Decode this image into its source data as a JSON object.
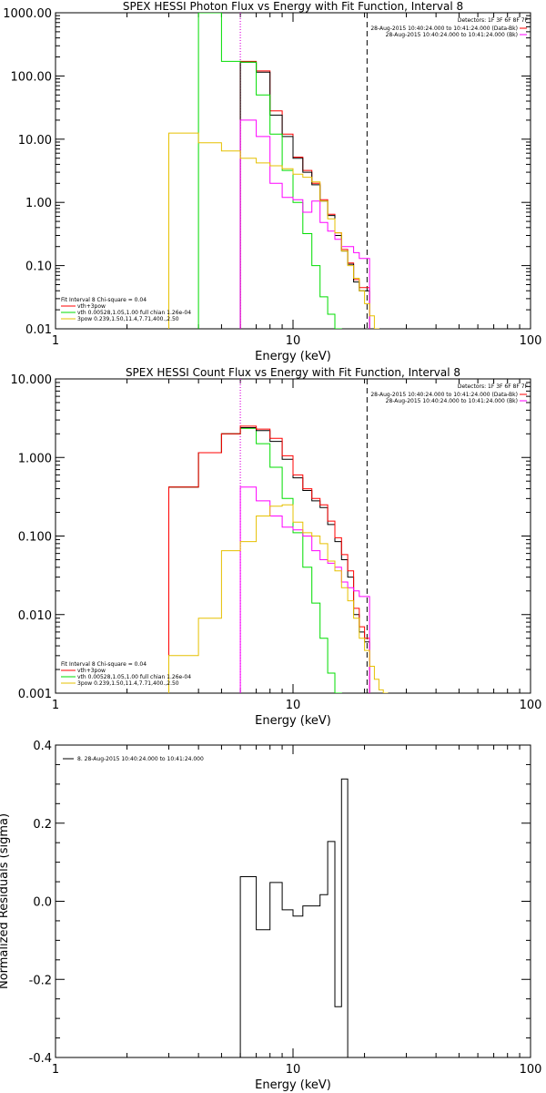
{
  "chart_data": [
    {
      "type": "line",
      "title": "SPEX HESSI Photon Flux vs Energy with Fit Function, Interval 8",
      "xlabel": "Energy (keV)",
      "ylabel": "",
      "xscale": "log",
      "yscale": "log",
      "xlim": [
        1,
        100
      ],
      "ylim": [
        0.01,
        1000
      ],
      "xticks": [
        {
          "v": 1,
          "label": "1"
        },
        {
          "v": 10,
          "label": "10"
        },
        {
          "v": 100,
          "label": "100"
        }
      ],
      "yticks": [
        {
          "v": 0.01,
          "label": "0.01"
        },
        {
          "v": 0.1,
          "label": "0.10"
        },
        {
          "v": 1,
          "label": "1.00"
        },
        {
          "v": 10,
          "label": "10.00"
        },
        {
          "v": 100,
          "label": "100.00"
        },
        {
          "v": 1000,
          "label": "1000.00"
        }
      ],
      "vlines": [
        {
          "x": 6.0,
          "style": "dotted",
          "color": "#000000"
        },
        {
          "x": 6.0,
          "style": "dotted",
          "color": "#ff00ff"
        },
        {
          "x": 20.5,
          "style": "dashed",
          "color": "#000000"
        }
      ],
      "detectors_label": "Detectors: 1F 3F 6F 8F 7F",
      "legend_top_right": [
        {
          "text": "28-Aug-2015 10:40:24.000 to 10:41:24.000 (Data-Bk)",
          "color": "#ff0000"
        },
        {
          "text": "28-Aug-2015 10:40:24.000 to 10:41:24.000 (Bk)",
          "color": "#ff00ff"
        }
      ],
      "legend_bottom_left": [
        {
          "text": "Fit Interval 8   Chi-square = 0.04",
          "color": ""
        },
        {
          "text": "vth+3pow",
          "color": "#ff0000"
        },
        {
          "text": "vth 0.00528,1.05,1.00  full chian 1.26e-04",
          "color": "#00dd00"
        },
        {
          "text": "3pow 0.239,1.50,11.4,7.71,400.,2.50",
          "color": "#e6c000"
        }
      ],
      "series": [
        {
          "color": "#ff0000",
          "x": [
            6.0,
            7.0,
            8.0,
            9.0,
            10.0,
            11.0,
            12.0,
            13.0,
            14.0,
            15.0,
            16.0,
            17.0,
            18.0,
            19.0,
            20.0
          ],
          "values": [
            170,
            120,
            28,
            12,
            5.2,
            3.2,
            2.0,
            1.1,
            0.65,
            0.33,
            0.18,
            0.11,
            0.06,
            0.045,
            0.045
          ]
        },
        {
          "color": "#000000",
          "x": [
            6.0,
            7.0,
            8.0,
            9.0,
            10.0,
            11.0,
            12.0,
            13.0,
            14.0,
            15.0,
            16.0,
            17.0,
            18.0,
            19.0,
            20.0
          ],
          "values": [
            165,
            115,
            24,
            11,
            5.0,
            3.0,
            1.9,
            1.05,
            0.62,
            0.3,
            0.17,
            0.105,
            0.055,
            0.04,
            0.04
          ]
        },
        {
          "color": "#00dd00",
          "x": [
            4.0,
            5.0,
            6.0,
            7.0,
            8.0,
            9.0,
            10.0,
            11.0,
            12.0,
            13.0,
            14.0,
            15.0
          ],
          "values": [
            1000,
            170,
            165,
            50,
            12,
            3.2,
            1.0,
            0.32,
            0.1,
            0.032,
            0.017,
            0.01
          ]
        },
        {
          "color": "#ff00ff",
          "x": [
            6.0,
            7.0,
            8.0,
            9.0,
            10.0,
            11.0,
            12.0,
            13.0,
            14.0,
            15.0,
            16.0,
            17.0,
            18.0,
            19.0,
            20.0
          ],
          "values": [
            20,
            11,
            2.0,
            1.2,
            1.1,
            0.7,
            1.05,
            0.48,
            0.35,
            0.26,
            0.2,
            0.2,
            0.16,
            0.13,
            0.13
          ]
        },
        {
          "color": "#e6c000",
          "x": [
            3.0,
            4.0,
            5.0,
            6.0,
            7.0,
            8.0,
            9.0,
            10.0,
            11.0,
            12.0,
            13.0,
            14.0,
            15.0,
            16.0,
            17.0,
            18.0,
            19.0,
            20.0,
            21.0,
            22.0
          ],
          "values": [
            12.5,
            8.8,
            6.5,
            5.0,
            4.2,
            3.8,
            3.4,
            2.8,
            2.5,
            2.1,
            1.05,
            0.55,
            0.33,
            0.17,
            0.1,
            0.063,
            0.04,
            0.025,
            0.016,
            0.01
          ]
        }
      ]
    },
    {
      "type": "line",
      "title": "SPEX HESSI Count Flux vs Energy with Fit Function, Interval 8",
      "xlabel": "Energy (keV)",
      "ylabel": "",
      "xscale": "log",
      "yscale": "log",
      "xlim": [
        1,
        100
      ],
      "ylim": [
        0.001,
        10
      ],
      "xticks": [
        {
          "v": 1,
          "label": "1"
        },
        {
          "v": 10,
          "label": "10"
        },
        {
          "v": 100,
          "label": "100"
        }
      ],
      "yticks": [
        {
          "v": 0.001,
          "label": "0.001"
        },
        {
          "v": 0.01,
          "label": "0.010"
        },
        {
          "v": 0.1,
          "label": "0.100"
        },
        {
          "v": 1,
          "label": "1.000"
        },
        {
          "v": 10,
          "label": "10.000"
        }
      ],
      "vlines": [
        {
          "x": 6.0,
          "style": "dotted",
          "color": "#000000"
        },
        {
          "x": 6.0,
          "style": "dotted",
          "color": "#ff00ff"
        },
        {
          "x": 20.5,
          "style": "dashed",
          "color": "#000000"
        }
      ],
      "detectors_label": "Detectors: 1F 3F 6F 8F 7F",
      "legend_top_right": [
        {
          "text": "28-Aug-2015 10:40:24.000 to 10:41:24.000 (Data-Bk)",
          "color": "#ff0000"
        },
        {
          "text": "28-Aug-2015 10:40:24.000 to 10:41:24.000 (Bk)",
          "color": "#ff00ff"
        }
      ],
      "legend_bottom_left": [
        {
          "text": "Fit Interval 8   Chi-square = 0.04",
          "color": ""
        },
        {
          "text": "vth+3pow",
          "color": "#ff0000"
        },
        {
          "text": "vth 0.00528,1.05,1.00  full chian 1.26e-04",
          "color": "#00dd00"
        },
        {
          "text": "3pow 0.239,1.50,11.4,7.71,400.,2.50",
          "color": "#e6c000"
        }
      ],
      "series": [
        {
          "color": "#00dd00",
          "x": [
            3.0,
            4.0,
            5.0,
            6.0,
            7.0,
            8.0,
            9.0,
            10.0,
            11.0,
            12.0,
            13.0,
            14.0,
            15.0
          ],
          "values": [
            0.42,
            1.15,
            2.0,
            2.35,
            1.5,
            0.75,
            0.3,
            0.11,
            0.04,
            0.014,
            0.005,
            0.0018,
            0.001
          ]
        },
        {
          "color": "#000000",
          "x": [
            3.0,
            4.0,
            5.0,
            6.0,
            7.0,
            8.0,
            9.0,
            10.0,
            11.0,
            12.0,
            13.0,
            14.0,
            15.0,
            16.0,
            17.0,
            18.0,
            19.0,
            20.0
          ],
          "values": [
            0.42,
            1.15,
            2.0,
            2.4,
            2.2,
            1.6,
            0.95,
            0.55,
            0.38,
            0.28,
            0.23,
            0.14,
            0.085,
            0.05,
            0.03,
            0.01,
            0.006,
            0.0045
          ]
        },
        {
          "color": "#ff0000",
          "x": [
            3.0,
            4.0,
            5.0,
            6.0,
            7.0,
            8.0,
            9.0,
            10.0,
            11.0,
            12.0,
            13.0,
            14.0,
            15.0,
            16.0,
            17.0,
            18.0,
            19.0,
            20.0
          ],
          "values": [
            0.42,
            1.15,
            2.0,
            2.5,
            2.3,
            1.75,
            1.05,
            0.6,
            0.4,
            0.3,
            0.25,
            0.155,
            0.095,
            0.058,
            0.036,
            0.012,
            0.007,
            0.005
          ]
        },
        {
          "color": "#ff00ff",
          "x": [
            6.0,
            7.0,
            8.0,
            9.0,
            10.0,
            11.0,
            12.0,
            13.0,
            14.0,
            15.0,
            16.0,
            17.0,
            18.0,
            19.0,
            20.0
          ],
          "values": [
            0.42,
            0.28,
            0.18,
            0.13,
            0.12,
            0.1,
            0.065,
            0.05,
            0.045,
            0.04,
            0.026,
            0.022,
            0.02,
            0.017,
            0.017
          ]
        },
        {
          "color": "#e6c000",
          "x": [
            3.0,
            4.0,
            5.0,
            6.0,
            7.0,
            8.0,
            9.0,
            10.0,
            11.0,
            12.0,
            13.0,
            14.0,
            15.0,
            16.0,
            17.0,
            18.0,
            19.0,
            20.0,
            21.0,
            22.0,
            23.0,
            24.0
          ],
          "values": [
            0.003,
            0.009,
            0.065,
            0.085,
            0.18,
            0.24,
            0.25,
            0.15,
            0.11,
            0.1,
            0.08,
            0.048,
            0.036,
            0.022,
            0.015,
            0.009,
            0.005,
            0.0035,
            0.0022,
            0.0015,
            0.0011,
            0.001
          ]
        }
      ]
    },
    {
      "type": "line",
      "title": "",
      "xlabel": "Energy (keV)",
      "ylabel": "Normalized Residuals (sigma)",
      "xscale": "log",
      "yscale": "linear",
      "xlim": [
        1,
        100
      ],
      "ylim": [
        -0.4,
        0.4
      ],
      "xticks": [
        {
          "v": 1,
          "label": "1"
        },
        {
          "v": 10,
          "label": "10"
        },
        {
          "v": 100,
          "label": "100"
        }
      ],
      "yticks": [
        {
          "v": -0.4,
          "label": "-0.4"
        },
        {
          "v": -0.2,
          "label": "-0.2"
        },
        {
          "v": 0.0,
          "label": "0.0"
        },
        {
          "v": 0.2,
          "label": "0.2"
        },
        {
          "v": 0.4,
          "label": "0.4"
        }
      ],
      "legend": [
        {
          "text": "8. 28-Aug-2015 10:40:24.000 to 10:41:24.000",
          "color": "#000000"
        }
      ],
      "series": [
        {
          "color": "#000000",
          "x": [
            6.0,
            7.0,
            8.0,
            9.0,
            10.0,
            11.0,
            12.0,
            13.0,
            14.0,
            15.0,
            16.0,
            17.0,
            18.0,
            19.0,
            20.0,
            21.0
          ],
          "values": [
            0.063,
            -0.073,
            0.048,
            -0.022,
            -0.038,
            -0.012,
            -0.012,
            0.017,
            0.153,
            -0.27,
            0.313,
            -0.4,
            -0.4,
            -0.4,
            -0.4,
            -0.4
          ]
        }
      ]
    }
  ]
}
